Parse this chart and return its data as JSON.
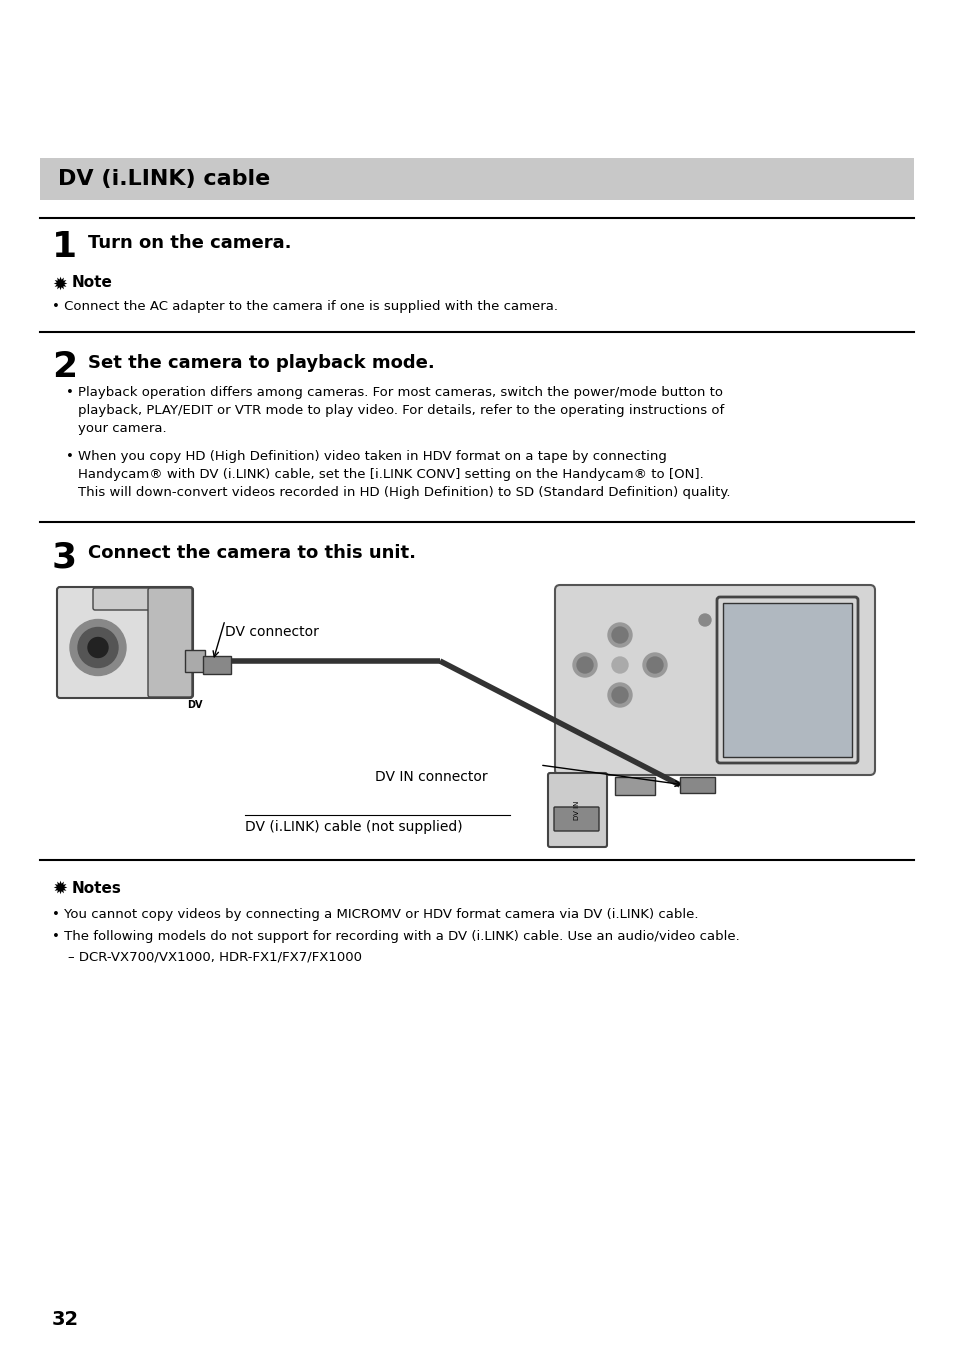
{
  "title": "DV (i.LINK) cable",
  "title_bg": "#c8c8c8",
  "page_bg": "#ffffff",
  "page_number": "32",
  "section1_title": "Turn on the camera.",
  "section1_note_label": "Note",
  "section1_note_text": "Connect the AC adapter to the camera if one is supplied with the camera.",
  "section2_title": "Set the camera to playback mode.",
  "section2_bullet1_lines": [
    "Playback operation differs among cameras. For most cameras, switch the power/mode button to",
    "playback, PLAY/EDIT or VTR mode to play video. For details, refer to the operating instructions of",
    "your camera."
  ],
  "section2_bullet2_lines": [
    "When you copy HD (High Definition) video taken in HDV format on a tape by connecting",
    "Handycam® with DV (i.LINK) cable, set the [i.LINK CONV] setting on the Handycam® to [ON].",
    "This will down-convert videos recorded in HD (High Definition) to SD (Standard Definition) quality."
  ],
  "section3_title": "Connect the camera to this unit.",
  "dv_connector_label": "DV connector",
  "dv_in_connector_label": "DV IN connector",
  "cable_label": "DV (i.LINK) cable (not supplied)",
  "notes_label": "Notes",
  "note1": "You cannot copy videos by connecting a MICROMV or HDV format camera via DV (i.LINK) cable.",
  "note2": "The following models do not support for recording with a DV (i.LINK) cable. Use an audio/video cable.",
  "note2b": "– DCR-VX700/VX1000, HDR-FX1/FX7/FX1000",
  "text_color": "#000000",
  "header_bg": "#c8c8c8",
  "line_color": "#000000"
}
